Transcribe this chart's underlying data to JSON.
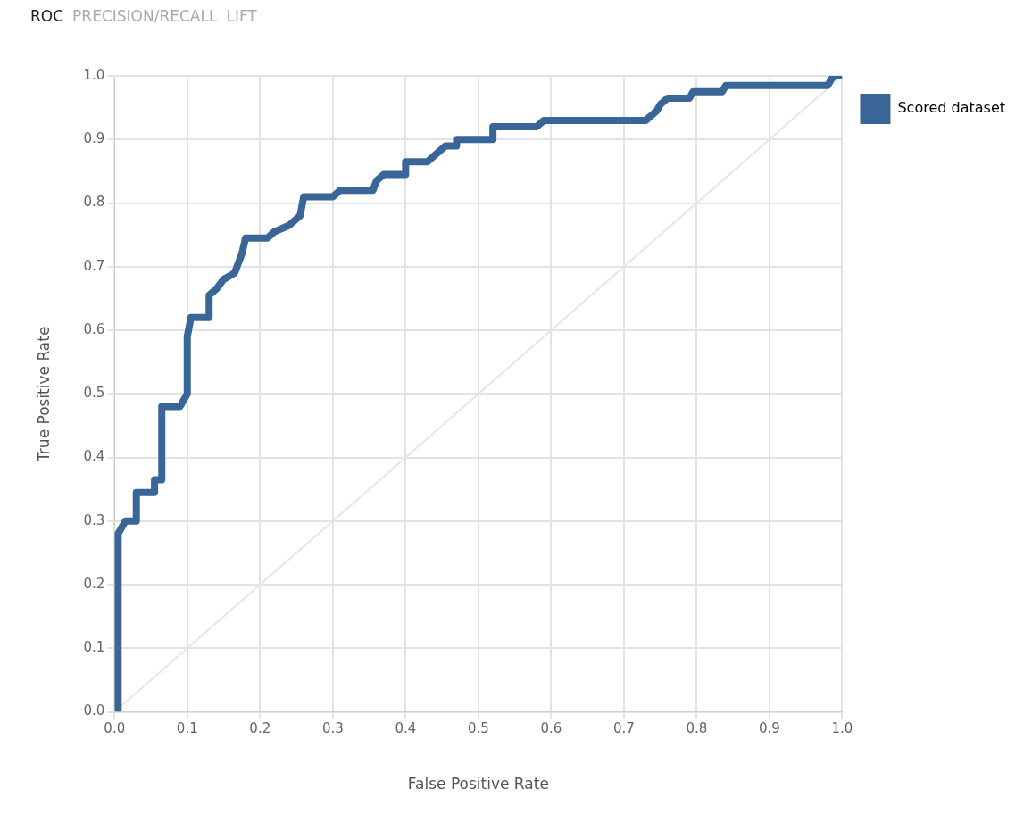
{
  "chart_data": {
    "type": "line",
    "xlabel": "False Positive Rate",
    "ylabel": "True Positive Rate",
    "annotations": [
      "ROC",
      "PRECISION/RECALL",
      "LIFT"
    ],
    "xlim": [
      0,
      1
    ],
    "ylim": [
      0,
      1
    ],
    "xticks": [
      {
        "value": 0,
        "label": "0.0"
      },
      {
        "value": 0.1,
        "label": "0.1"
      },
      {
        "value": 0.2,
        "label": "0.2"
      },
      {
        "value": 0.3,
        "label": "0.3"
      },
      {
        "value": 0.4,
        "label": "0.4"
      },
      {
        "value": 0.5,
        "label": "0.5"
      },
      {
        "value": 0.6,
        "label": "0.6"
      },
      {
        "value": 0.7,
        "label": "0.7"
      },
      {
        "value": 0.8,
        "label": "0.8"
      },
      {
        "value": 0.9,
        "label": "0.9"
      },
      {
        "value": 1,
        "label": "1.0"
      }
    ],
    "yticks": [
      {
        "value": 0,
        "label": "0.0"
      },
      {
        "value": 0.1,
        "label": "0.1"
      },
      {
        "value": 0.2,
        "label": "0.2"
      },
      {
        "value": 0.3,
        "label": "0.3"
      },
      {
        "value": 0.4,
        "label": "0.4"
      },
      {
        "value": 0.5,
        "label": "0.5"
      },
      {
        "value": 0.6,
        "label": "0.6"
      },
      {
        "value": 0.7,
        "label": "0.7"
      },
      {
        "value": 0.8,
        "label": "0.8"
      },
      {
        "value": 0.9,
        "label": "0.9"
      },
      {
        "value": 1,
        "label": "1.0"
      }
    ],
    "grid": true,
    "legend": "right",
    "marker": "none",
    "series": [
      {
        "name": "Scored dataset",
        "color": "#3a6597",
        "x": [
          0.005,
          0.005,
          0.015,
          0.03,
          0.03,
          0.055,
          0.055,
          0.065,
          0.065,
          0.09,
          0.1,
          0.1,
          0.105,
          0.13,
          0.13,
          0.14,
          0.15,
          0.165,
          0.175,
          0.18,
          0.21,
          0.22,
          0.24,
          0.255,
          0.26,
          0.3,
          0.31,
          0.355,
          0.36,
          0.37,
          0.4,
          0.4,
          0.43,
          0.44,
          0.455,
          0.47,
          0.47,
          0.52,
          0.52,
          0.58,
          0.59,
          0.73,
          0.745,
          0.75,
          0.76,
          0.79,
          0.795,
          0.835,
          0.84,
          0.98,
          0.985,
          0.99,
          1.0
        ],
        "values": [
          0,
          0.28,
          0.3,
          0.3,
          0.345,
          0.345,
          0.365,
          0.365,
          0.48,
          0.48,
          0.5,
          0.59,
          0.62,
          0.62,
          0.655,
          0.665,
          0.68,
          0.69,
          0.72,
          0.745,
          0.745,
          0.755,
          0.765,
          0.78,
          0.81,
          0.81,
          0.82,
          0.82,
          0.835,
          0.845,
          0.845,
          0.865,
          0.865,
          0.875,
          0.89,
          0.89,
          0.9,
          0.9,
          0.92,
          0.92,
          0.93,
          0.93,
          0.945,
          0.955,
          0.965,
          0.965,
          0.975,
          0.975,
          0.985,
          0.985,
          0.995,
          1,
          1
        ]
      },
      {
        "color": "#e6e6e6",
        "x": [
          0,
          1
        ],
        "values": [
          0,
          1
        ]
      }
    ]
  }
}
